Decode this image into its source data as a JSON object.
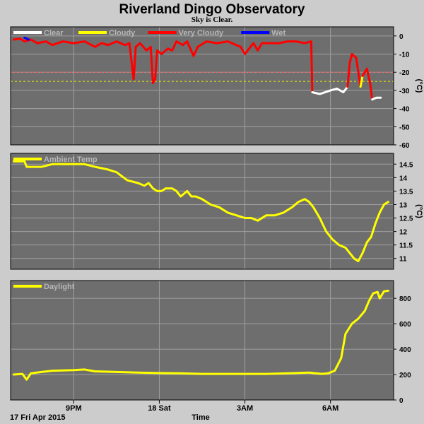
{
  "title": "Riverland Dingo Observatory",
  "subtitle": "Sky is Clear.",
  "footer_date": "17 Fri Apr 2015",
  "x_label": "Time",
  "x_ticks": [
    {
      "t": 1.0,
      "label": "9PM"
    },
    {
      "t": 5.0,
      "label": "18 Sat"
    },
    {
      "t": 9.0,
      "label": "3AM"
    },
    {
      "t": 13.0,
      "label": "6AM"
    }
  ],
  "colors": {
    "background": "#cccccc",
    "panel": "#6e6e6e",
    "grid": "#a0a0a0",
    "clear": "#ffffff",
    "cloudy": "#ffff00",
    "very_cloudy": "#ff0000",
    "wet": "#0000ff",
    "threshold_red": "#ff5050",
    "threshold_yellow": "#e8e800"
  },
  "chart_data": [
    {
      "type": "line",
      "ylabel": "(°C)",
      "ylim": [
        -60,
        5
      ],
      "yticks": [
        0,
        -10,
        -20,
        -30,
        -40,
        -50,
        -60
      ],
      "thresholds": [
        {
          "value": -20,
          "color": "#ff5050"
        },
        {
          "value": -25,
          "color": "#e8e800"
        }
      ],
      "legend": [
        {
          "label": "Clear",
          "color": "#ffffff"
        },
        {
          "label": "Cloudy",
          "color": "#ffff00"
        },
        {
          "label": "Very Cloudy",
          "color": "#ff0000"
        },
        {
          "label": "Wet",
          "color": "#0000ff"
        }
      ],
      "series": [
        {
          "color": "#ff0000",
          "points": [
            [
              -1.8,
              -2
            ],
            [
              -1.5,
              -1.5
            ],
            [
              -1.3,
              -3
            ],
            [
              -1.0,
              -2
            ],
            [
              -0.7,
              -4
            ],
            [
              -0.3,
              -3
            ],
            [
              0.0,
              -5
            ],
            [
              0.5,
              -3
            ],
            [
              1.0,
              -4
            ],
            [
              1.5,
              -3
            ],
            [
              2.0,
              -6
            ],
            [
              2.3,
              -4
            ],
            [
              2.6,
              -5
            ],
            [
              3.0,
              -3
            ],
            [
              3.4,
              -5
            ],
            [
              3.6,
              -4
            ],
            [
              3.8,
              -24
            ],
            [
              3.9,
              -6
            ],
            [
              4.1,
              -4
            ],
            [
              4.4,
              -8
            ],
            [
              4.6,
              -6
            ],
            [
              4.7,
              -26
            ],
            [
              4.8,
              -24
            ],
            [
              4.9,
              -8
            ],
            [
              5.1,
              -10
            ],
            [
              5.4,
              -7
            ],
            [
              5.6,
              -8
            ],
            [
              5.8,
              -3
            ],
            [
              6.1,
              -5
            ],
            [
              6.3,
              -3
            ],
            [
              6.6,
              -11
            ],
            [
              6.8,
              -6
            ],
            [
              7.2,
              -3
            ],
            [
              7.7,
              -4
            ],
            [
              8.2,
              -3
            ],
            [
              8.6,
              -5
            ],
            [
              8.8,
              -6
            ],
            [
              9.0,
              -10
            ],
            [
              9.2,
              -7
            ],
            [
              9.4,
              -4
            ],
            [
              9.6,
              -8
            ],
            [
              9.8,
              -4
            ],
            [
              10.2,
              -4
            ],
            [
              10.6,
              -4
            ],
            [
              11.0,
              -3
            ],
            [
              11.4,
              -3
            ],
            [
              11.8,
              -4
            ],
            [
              12.1,
              -3
            ],
            [
              12.15,
              -31
            ]
          ]
        },
        {
          "color": "#ffffff",
          "points": [
            [
              12.15,
              -31
            ],
            [
              12.5,
              -32
            ],
            [
              13.0,
              -30
            ],
            [
              13.3,
              -29
            ],
            [
              13.6,
              -31
            ],
            [
              13.8,
              -28
            ]
          ]
        },
        {
          "color": "#ff0000",
          "points": [
            [
              13.8,
              -28
            ],
            [
              13.9,
              -15
            ],
            [
              14.0,
              -10
            ],
            [
              14.2,
              -12
            ],
            [
              14.4,
              -28
            ]
          ]
        },
        {
          "color": "#ffff00",
          "points": [
            [
              14.4,
              -28
            ],
            [
              14.5,
              -22
            ]
          ]
        },
        {
          "color": "#ff0000",
          "points": [
            [
              14.5,
              -22
            ],
            [
              14.7,
              -18
            ],
            [
              14.85,
              -26
            ],
            [
              14.95,
              -35
            ]
          ]
        },
        {
          "color": "#ffffff",
          "points": [
            [
              14.95,
              -35
            ],
            [
              15.15,
              -34
            ],
            [
              15.35,
              -34
            ]
          ]
        },
        {
          "color": "#0000ff",
          "points": [
            [
              -1.3,
              -1
            ],
            [
              -1.1,
              -2
            ]
          ]
        }
      ]
    },
    {
      "type": "line",
      "ylabel": "(°C)",
      "ylim": [
        10.6,
        14.9
      ],
      "yticks": [
        14.5,
        14.0,
        13.5,
        13.0,
        12.5,
        12.0,
        11.5,
        11.0
      ],
      "legend": [
        {
          "label": "Ambient Temp",
          "color": "#ffff00"
        }
      ],
      "series": [
        {
          "color": "#ffff00",
          "points": [
            [
              -1.8,
              14.6
            ],
            [
              -1.3,
              14.6
            ],
            [
              -1.2,
              14.4
            ],
            [
              -0.5,
              14.4
            ],
            [
              0.0,
              14.5
            ],
            [
              1.0,
              14.5
            ],
            [
              1.5,
              14.5
            ],
            [
              2.0,
              14.4
            ],
            [
              2.6,
              14.3
            ],
            [
              3.0,
              14.2
            ],
            [
              3.5,
              13.9
            ],
            [
              4.0,
              13.8
            ],
            [
              4.3,
              13.7
            ],
            [
              4.5,
              13.8
            ],
            [
              4.7,
              13.6
            ],
            [
              4.9,
              13.5
            ],
            [
              5.1,
              13.5
            ],
            [
              5.3,
              13.6
            ],
            [
              5.6,
              13.6
            ],
            [
              5.8,
              13.5
            ],
            [
              6.0,
              13.3
            ],
            [
              6.3,
              13.5
            ],
            [
              6.5,
              13.3
            ],
            [
              6.7,
              13.3
            ],
            [
              7.0,
              13.2
            ],
            [
              7.4,
              13.0
            ],
            [
              7.8,
              12.9
            ],
            [
              8.2,
              12.7
            ],
            [
              8.6,
              12.6
            ],
            [
              9.0,
              12.5
            ],
            [
              9.3,
              12.5
            ],
            [
              9.6,
              12.4
            ],
            [
              10.0,
              12.6
            ],
            [
              10.4,
              12.6
            ],
            [
              10.8,
              12.7
            ],
            [
              11.2,
              12.9
            ],
            [
              11.5,
              13.1
            ],
            [
              11.8,
              13.2
            ],
            [
              12.0,
              13.1
            ],
            [
              12.2,
              12.9
            ],
            [
              12.5,
              12.5
            ],
            [
              12.8,
              12.0
            ],
            [
              13.1,
              11.7
            ],
            [
              13.4,
              11.5
            ],
            [
              13.7,
              11.4
            ],
            [
              13.9,
              11.2
            ],
            [
              14.1,
              11.0
            ],
            [
              14.3,
              10.9
            ],
            [
              14.5,
              11.2
            ],
            [
              14.7,
              11.6
            ],
            [
              14.9,
              11.8
            ],
            [
              15.1,
              12.3
            ],
            [
              15.3,
              12.7
            ],
            [
              15.5,
              13.0
            ],
            [
              15.7,
              13.1
            ]
          ]
        }
      ]
    },
    {
      "type": "line",
      "ylabel": "",
      "ylim": [
        0,
        940
      ],
      "yticks": [
        800,
        600,
        400,
        200,
        0
      ],
      "legend": [
        {
          "label": "Daylight",
          "color": "#ffff00"
        }
      ],
      "series": [
        {
          "color": "#ffff00",
          "points": [
            [
              -1.8,
              200
            ],
            [
              -1.4,
              205
            ],
            [
              -1.2,
              160
            ],
            [
              -1.0,
              210
            ],
            [
              -0.5,
              220
            ],
            [
              0.0,
              230
            ],
            [
              1.0,
              235
            ],
            [
              1.5,
              240
            ],
            [
              2.0,
              225
            ],
            [
              3.0,
              220
            ],
            [
              4.0,
              215
            ],
            [
              5.0,
              212
            ],
            [
              6.0,
              210
            ],
            [
              7.0,
              205
            ],
            [
              8.0,
              205
            ],
            [
              9.0,
              205
            ],
            [
              10.0,
              205
            ],
            [
              11.0,
              210
            ],
            [
              12.0,
              215
            ],
            [
              12.6,
              205
            ],
            [
              12.9,
              210
            ],
            [
              13.2,
              230
            ],
            [
              13.5,
              330
            ],
            [
              13.7,
              520
            ],
            [
              14.0,
              600
            ],
            [
              14.3,
              640
            ],
            [
              14.6,
              700
            ],
            [
              14.8,
              780
            ],
            [
              15.0,
              840
            ],
            [
              15.2,
              850
            ],
            [
              15.3,
              800
            ],
            [
              15.5,
              855
            ],
            [
              15.7,
              860
            ]
          ]
        }
      ]
    }
  ]
}
